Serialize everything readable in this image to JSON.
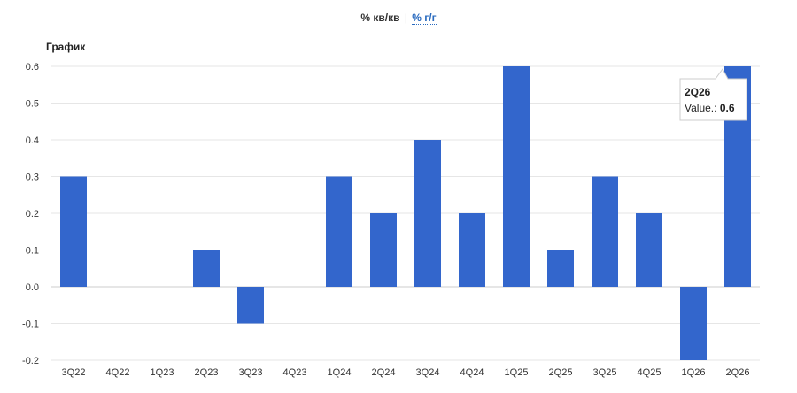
{
  "toggle": {
    "qoq_label": "% кв/кв",
    "separator": "|",
    "yoy_label": "% г/г"
  },
  "chart_title": "График",
  "tooltip": {
    "category": "2Q26",
    "value_label": "Value.:",
    "value": "0.6"
  },
  "colors": {
    "bar": "#3366cc",
    "grid": "#e6e6e6",
    "zero_line": "#cccccc",
    "link": "#2a6bbf"
  },
  "chart_data": {
    "type": "bar",
    "title": "График",
    "categories": [
      "3Q22",
      "4Q22",
      "1Q23",
      "2Q23",
      "3Q23",
      "4Q23",
      "1Q24",
      "2Q24",
      "3Q24",
      "4Q24",
      "1Q25",
      "2Q25",
      "3Q25",
      "4Q25",
      "1Q26",
      "2Q26"
    ],
    "values": [
      0.3,
      0,
      0,
      0.1,
      -0.1,
      0,
      0.3,
      0.2,
      0.4,
      0.2,
      0.6,
      0.1,
      0.3,
      0.2,
      -0.2,
      0.6
    ],
    "ylim": [
      -0.2,
      0.6
    ],
    "yticks": [
      "0.6",
      "0.5",
      "0.4",
      "0.3",
      "0.2",
      "0.1",
      "0.0",
      "-0.1",
      "-0.2"
    ],
    "ytick_values": [
      0.6,
      0.5,
      0.4,
      0.3,
      0.2,
      0.1,
      0.0,
      -0.1,
      -0.2
    ],
    "grid": true,
    "xlabel": "",
    "ylabel": ""
  }
}
